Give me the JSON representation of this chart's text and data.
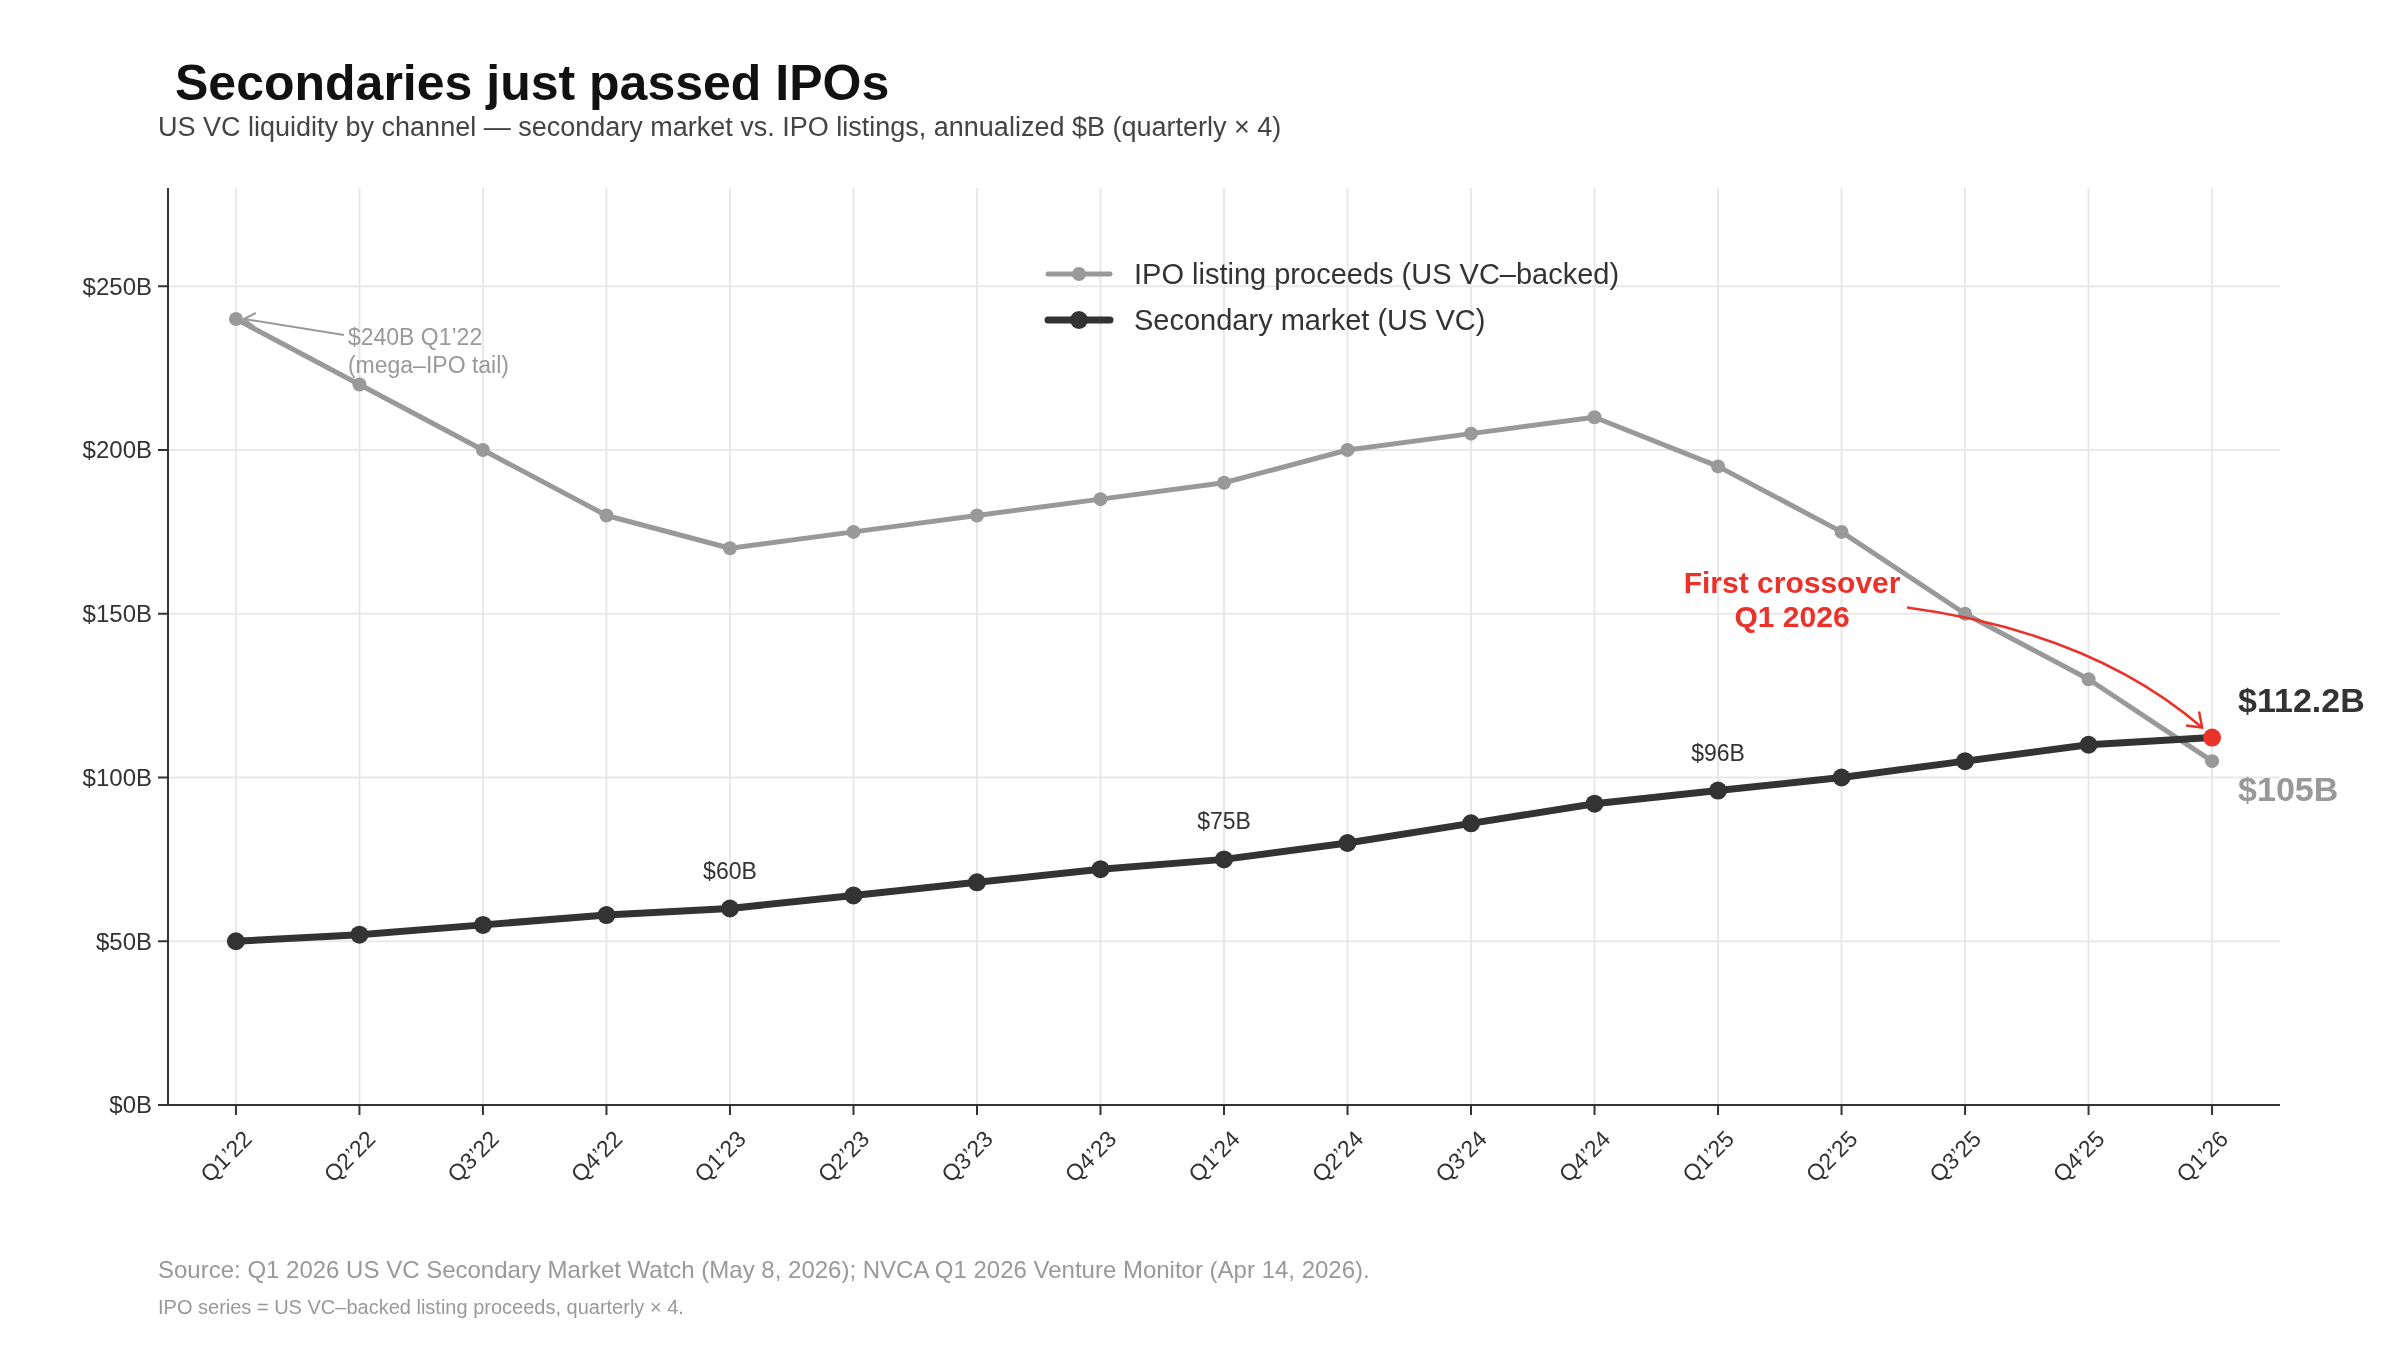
{
  "chart_data": {
    "type": "line",
    "title": "Secondaries just passed IPOs",
    "subtitle": "US VC liquidity by channel — secondary market vs. IPO listings, annualized $B (quarterly × 4)",
    "categories": [
      "Q1’22",
      "Q2’22",
      "Q3’22",
      "Q4’22",
      "Q1’23",
      "Q2’23",
      "Q3’23",
      "Q4’23",
      "Q1’24",
      "Q2’24",
      "Q3’24",
      "Q4’24",
      "Q1’25",
      "Q2’25",
      "Q3’25",
      "Q4’25",
      "Q1’26"
    ],
    "series": [
      {
        "name": "IPO listing proceeds (US VC–backed)",
        "color": "#999999",
        "values": [
          240,
          220,
          200,
          180,
          170,
          175,
          180,
          185,
          190,
          200,
          205,
          210,
          195,
          175,
          150,
          130,
          105
        ],
        "value_labels": [
          null,
          null,
          null,
          null,
          null,
          null,
          null,
          null,
          null,
          null,
          null,
          null,
          null,
          null,
          null,
          null,
          "$105B"
        ]
      },
      {
        "name": "Secondary market (US VC)",
        "color": "#333333",
        "colors": [
          "#333333",
          "#333333",
          "#333333",
          "#333333",
          "#333333",
          "#333333",
          "#333333",
          "#333333",
          "#333333",
          "#333333",
          "#333333",
          "#333333",
          "#333333",
          "#333333",
          "#333333",
          "#333333",
          "#e8322a"
        ],
        "values": [
          50,
          52,
          55,
          58,
          60,
          64,
          68,
          72,
          75,
          80,
          86,
          92,
          96,
          100,
          105,
          110,
          112.2
        ],
        "value_labels": [
          null,
          null,
          null,
          null,
          "$60B",
          null,
          null,
          null,
          "$75B",
          null,
          null,
          null,
          "$96B",
          null,
          null,
          null,
          "$112.2B"
        ]
      }
    ],
    "ylim": [
      0,
      280
    ],
    "yticks": [
      {
        "value": 0,
        "label": "$0B"
      },
      {
        "value": 50,
        "label": "$50B"
      },
      {
        "value": 100,
        "label": "$100B"
      },
      {
        "value": 150,
        "label": "$150B"
      },
      {
        "value": 200,
        "label": "$200B"
      },
      {
        "value": 250,
        "label": "$250B"
      }
    ],
    "grid": true,
    "legend": "top",
    "marker": "circle",
    "line_style": "solid",
    "annotations": [
      {
        "text": "$240B Q1’22\n(mega–IPO tail)",
        "x": "Q1’22",
        "y": 240
      },
      "First crossover\nQ1 2026",
      "Source: Q1 2026 US VC Secondary Market Watch (May 8, 2026); NVCA Q1 2026 Venture Monitor (Apr 14, 2026).",
      "IPO series = US VC–backed listing proceeds, quarterly × 4."
    ]
  }
}
